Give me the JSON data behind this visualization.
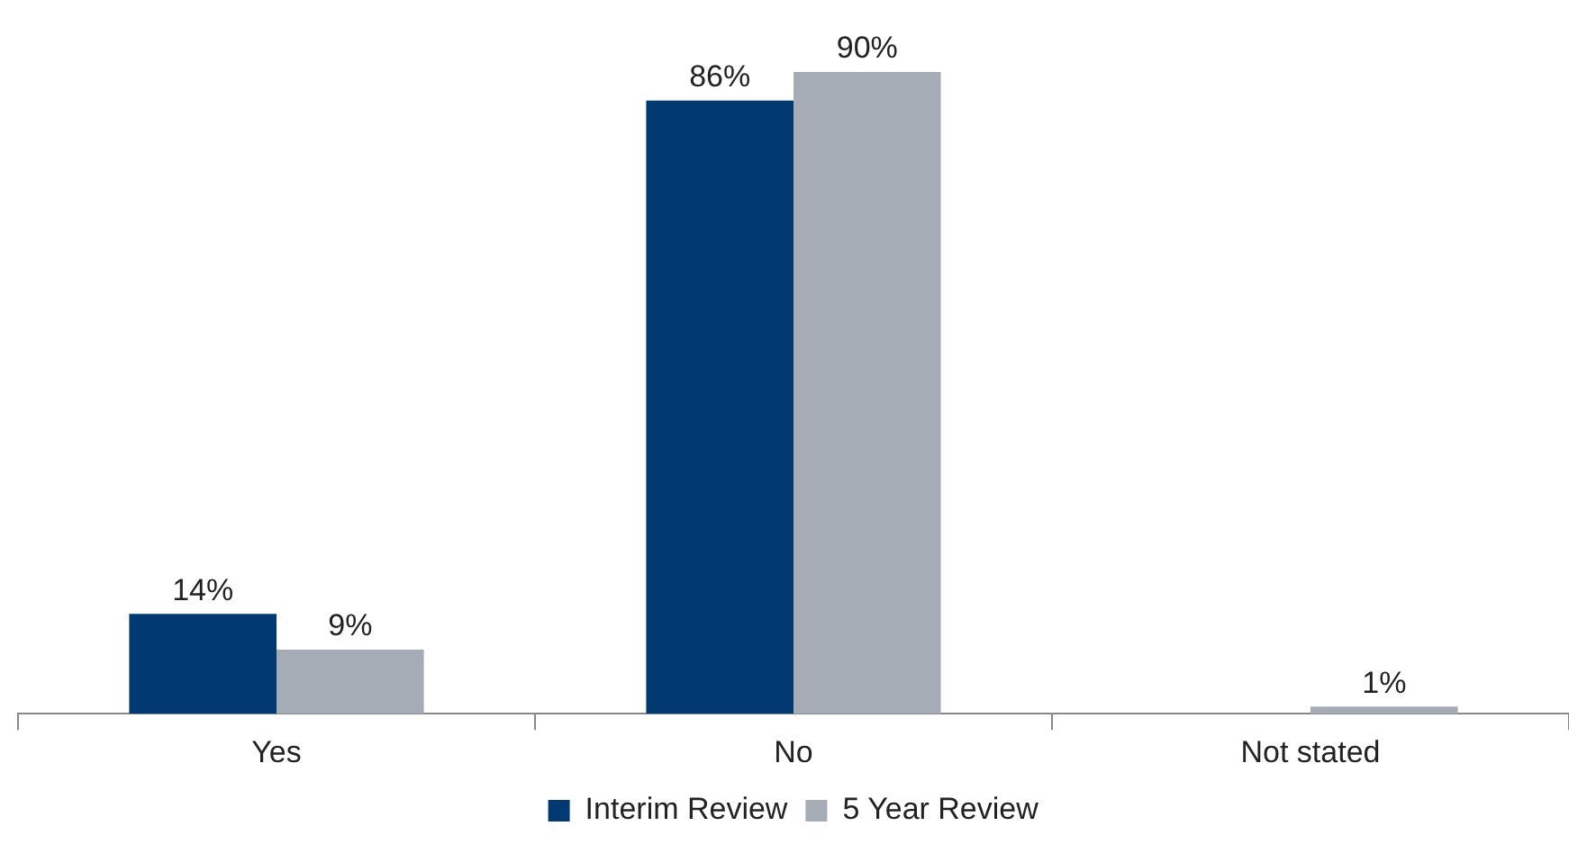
{
  "chart_data": {
    "type": "bar",
    "categories": [
      "Yes",
      "No",
      "Not stated"
    ],
    "series": [
      {
        "name": "Interim Review",
        "color": "#003a70",
        "values": [
          14,
          86,
          null
        ],
        "value_labels": [
          "14%",
          "86%",
          null
        ]
      },
      {
        "name": "5 Year Review",
        "color": "#a5acb5",
        "values": [
          9,
          90,
          1
        ],
        "value_labels": [
          "9%",
          "90%",
          "1%"
        ]
      }
    ],
    "legend": "bottom"
  }
}
